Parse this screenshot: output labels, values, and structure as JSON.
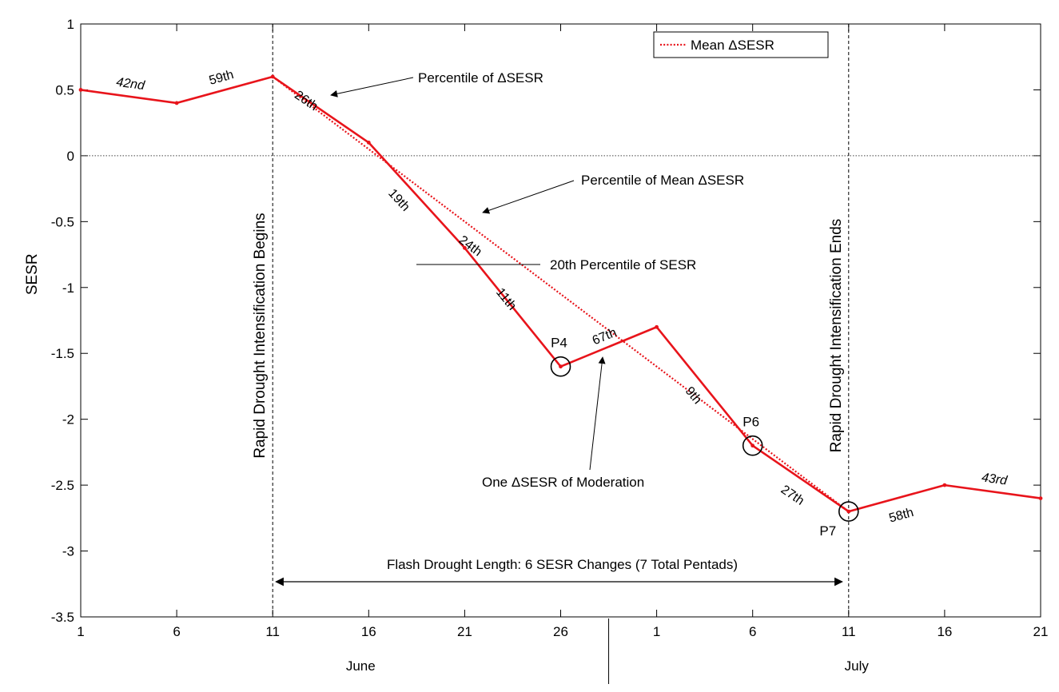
{
  "chart_data": {
    "type": "line",
    "ylabel": "SESR",
    "ylim": [
      -3.5,
      1
    ],
    "yticks": [
      1,
      0.5,
      0,
      -0.5,
      -1,
      -1.5,
      -2,
      -2.5,
      -3,
      -3.5
    ],
    "ytick_labels": [
      "1",
      "0.5",
      "0",
      "-0.5",
      "-1",
      "-1.5",
      "-2",
      "-2.5",
      "-3",
      "-3.5"
    ],
    "x_index_range": [
      0,
      10
    ],
    "xtick_labels": [
      "1",
      "6",
      "11",
      "16",
      "21",
      "26",
      "1",
      "6",
      "11",
      "16",
      "21"
    ],
    "months": [
      "June",
      "July"
    ],
    "grid": false,
    "legend_position": "top-right",
    "series": [
      {
        "name": "",
        "color": "#e8141b",
        "style": "solid",
        "x": [
          0,
          1,
          2,
          3,
          4,
          5,
          6,
          7,
          8,
          9,
          10
        ],
        "y": [
          0.5,
          0.4,
          0.6,
          0.1,
          -0.7,
          -1.6,
          -1.3,
          -2.2,
          -2.7,
          -2.5,
          -2.6
        ]
      },
      {
        "name": "Mean ΔSESR",
        "color": "#e8141b",
        "style": "dotted",
        "x": [
          2,
          8
        ],
        "y": [
          0.6,
          -2.7
        ]
      }
    ],
    "segment_labels": [
      {
        "text": "42nd",
        "segment": 0,
        "italic": true
      },
      {
        "text": "59th",
        "segment": 1,
        "italic": false
      },
      {
        "text": "26th",
        "segment": 2,
        "italic": false
      },
      {
        "text": "19th",
        "segment": 3,
        "italic": false
      },
      {
        "text": "11th",
        "segment": 4,
        "italic": false
      },
      {
        "text": "67th",
        "segment": 5,
        "italic": false
      },
      {
        "text": "9th",
        "segment": 6,
        "italic": false
      },
      {
        "text": "27th",
        "segment": 7,
        "italic": false
      },
      {
        "text": "58th",
        "segment": 8,
        "italic": false
      },
      {
        "text": "43rd",
        "segment": 9,
        "italic": true
      },
      {
        "text": "24th",
        "segment": "mean",
        "italic": false
      }
    ],
    "point_labels": [
      {
        "text": "P4",
        "x": 5,
        "y": -1.6
      },
      {
        "text": "P6",
        "x": 7,
        "y": -2.2
      },
      {
        "text": "P7",
        "x": 8,
        "y": -2.7
      }
    ],
    "vertical_lines": [
      {
        "x": 2,
        "label": "Rapid Drought Intensification Begins"
      },
      {
        "x": 8,
        "label": "Rapid Drought Intensification Ends"
      }
    ],
    "annotations": {
      "percentile_delta": "Percentile of ΔSESR",
      "percentile_mean": "Percentile of Mean ΔSESR",
      "percentile_20": "20th Percentile of SESR",
      "moderation": "One ΔSESR of Moderation",
      "flash_length": "Flash Drought Length: 6 SESR Changes (7 Total Pentads)"
    }
  }
}
